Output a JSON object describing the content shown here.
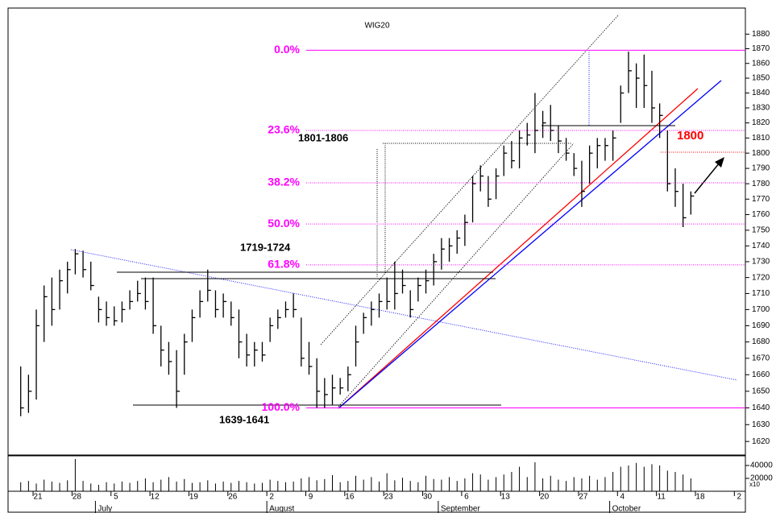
{
  "chart_data": {
    "type": "ohlc",
    "title": "WIG20",
    "log_scale": true,
    "color": "#000000",
    "categories": [
      null,
      null,
      "21",
      null,
      null,
      null,
      null,
      "28",
      null,
      null,
      null,
      null,
      "5",
      null,
      null,
      null,
      null,
      "12",
      null,
      null,
      null,
      null,
      "19",
      null,
      null,
      null,
      null,
      "26",
      null,
      null,
      null,
      null,
      "2",
      null,
      null,
      null,
      null,
      "9",
      null,
      null,
      null,
      null,
      "16",
      null,
      null,
      null,
      null,
      "23",
      null,
      null,
      null,
      null,
      "30",
      null,
      null,
      null,
      null,
      "6",
      null,
      null,
      null,
      null,
      "13",
      null,
      null,
      null,
      null,
      "20",
      null,
      null,
      null,
      null,
      "27",
      null,
      null,
      null,
      null,
      "4",
      null,
      null,
      null,
      null,
      "11",
      null,
      null,
      null,
      null,
      "18",
      null,
      null,
      null,
      null,
      "2"
    ],
    "month_labels": [
      null,
      null,
      null,
      null,
      null,
      null,
      null,
      null,
      null,
      null,
      "July",
      null,
      null,
      null,
      null,
      null,
      null,
      null,
      null,
      null,
      null,
      null,
      null,
      null,
      null,
      null,
      null,
      null,
      null,
      null,
      null,
      null,
      "August",
      null,
      null,
      null,
      null,
      null,
      null,
      null,
      null,
      null,
      null,
      null,
      null,
      null,
      null,
      null,
      null,
      null,
      null,
      null,
      null,
      null,
      "September",
      null,
      null,
      null,
      null,
      null,
      null,
      null,
      null,
      null,
      null,
      null,
      null,
      null,
      null,
      null,
      null,
      null,
      null,
      null,
      null,
      null,
      "October",
      null,
      null,
      null,
      null,
      null,
      null,
      null,
      null,
      null,
      null,
      null,
      null,
      null,
      null,
      null,
      null
    ],
    "high": [
      1665,
      1660,
      1700,
      1715,
      1720,
      1725,
      1730,
      1738,
      1737,
      1730,
      1708,
      1705,
      1702,
      1705,
      1712,
      1718,
      1720,
      1720,
      1690,
      1680,
      1675,
      1685,
      1700,
      1712,
      1725,
      1712,
      1710,
      1705,
      1700,
      1685,
      1680,
      1680,
      1695,
      1700,
      1705,
      1710,
      1695,
      1680,
      1670,
      1658,
      1660,
      1658,
      1665,
      1690,
      1698,
      1705,
      1710,
      1720,
      1730,
      1725,
      1712,
      1720,
      1725,
      1735,
      1745,
      1745,
      1750,
      1760,
      1785,
      1792,
      1785,
      1790,
      1805,
      1808,
      1815,
      1820,
      1840,
      1828,
      1832,
      1818,
      1810,
      1800,
      1795,
      1805,
      1810,
      1810,
      1815,
      1845,
      1868,
      1860,
      1866,
      1855,
      1833,
      1815,
      1790,
      1780,
      1775,
      null,
      null,
      null,
      null,
      null,
      null
    ],
    "low": [
      1635,
      1637,
      1645,
      1680,
      1690,
      1700,
      1710,
      1722,
      1720,
      1712,
      1692,
      1690,
      1690,
      1692,
      1700,
      1705,
      1700,
      1685,
      1665,
      1660,
      1640,
      1660,
      1680,
      1695,
      1705,
      1695,
      1695,
      1690,
      1670,
      1665,
      1665,
      1668,
      1680,
      1688,
      1695,
      1695,
      1665,
      1660,
      1640,
      1640,
      1642,
      1648,
      1650,
      1665,
      1685,
      1690,
      1695,
      1700,
      1700,
      1710,
      1695,
      1705,
      1710,
      1715,
      1725,
      1730,
      1735,
      1740,
      1755,
      1775,
      1765,
      1770,
      1785,
      1790,
      1790,
      1805,
      1800,
      1810,
      1808,
      1800,
      1795,
      1785,
      1765,
      1780,
      1790,
      1795,
      1795,
      1820,
      1840,
      1830,
      1830,
      1820,
      1810,
      1775,
      1765,
      1752,
      1760,
      null,
      null,
      null,
      null,
      null,
      null
    ],
    "close": [
      1640,
      1650,
      1690,
      1708,
      1700,
      1718,
      1725,
      1735,
      1725,
      1715,
      1700,
      1695,
      1693,
      1700,
      1705,
      1710,
      1705,
      1690,
      1675,
      1668,
      1650,
      1680,
      1695,
      1705,
      1712,
      1700,
      1705,
      1695,
      1680,
      1672,
      1675,
      1672,
      1690,
      1695,
      1700,
      1700,
      1670,
      1665,
      1650,
      1648,
      1652,
      1652,
      1660,
      1680,
      1695,
      1700,
      1705,
      1705,
      1710,
      1715,
      1700,
      1715,
      1718,
      1730,
      1738,
      1740,
      1745,
      1755,
      1780,
      1785,
      1770,
      1785,
      1800,
      1795,
      1810,
      1812,
      1815,
      1820,
      1815,
      1808,
      1800,
      1790,
      1775,
      1800,
      1805,
      1805,
      1810,
      1840,
      1855,
      1850,
      1845,
      1830,
      1825,
      1780,
      1775,
      1758,
      1772,
      null,
      null,
      null,
      null,
      null,
      null
    ],
    "ylim": [
      1612,
      1898
    ],
    "yticks": [
      1620,
      1630,
      1640,
      1650,
      1660,
      1670,
      1680,
      1690,
      1700,
      1710,
      1720,
      1730,
      1740,
      1750,
      1760,
      1770,
      1780,
      1790,
      1800,
      1810,
      1820,
      1830,
      1840,
      1850,
      1860,
      1870,
      1880
    ],
    "levels": [
      {
        "label": "0.0%",
        "value": 1869
      },
      {
        "label": "23.6%",
        "value": 1815
      },
      {
        "label": "38.2%",
        "value": 1780.6
      },
      {
        "label": "50.0%",
        "value": 1754
      },
      {
        "label": "61.8%",
        "value": 1728
      },
      {
        "label": "100.0%",
        "value": 1640
      }
    ],
    "level_color": "#ff00ff",
    "annotations": [
      "1801-1806",
      "1719-1724",
      "1639-1641",
      "1800"
    ],
    "volume": {
      "values": [
        14000,
        16000,
        12000,
        18000,
        15000,
        13000,
        17000,
        50000,
        16000,
        12000,
        10000,
        14000,
        12000,
        15000,
        13000,
        16000,
        20000,
        14000,
        18000,
        22000,
        15000,
        19000,
        13000,
        14000,
        17000,
        12000,
        15000,
        13000,
        16000,
        14000,
        12000,
        13000,
        18000,
        16000,
        14000,
        15000,
        20000,
        22000,
        17000,
        19000,
        25000,
        14000,
        16000,
        24000,
        18000,
        22000,
        15000,
        28000,
        17000,
        21000,
        16000,
        14000,
        24000,
        19000,
        18000,
        22000,
        16000,
        20000,
        28000,
        26000,
        18000,
        22000,
        26000,
        30000,
        38000,
        22000,
        45000,
        20000,
        24000,
        18000,
        16000,
        22000,
        20000,
        24000,
        18000,
        22000,
        30000,
        38000,
        40000,
        44000,
        38000,
        42000,
        40000,
        32000,
        30000,
        26000,
        20000,
        null,
        null,
        null,
        null,
        null,
        null
      ],
      "ylim": [
        0,
        55000
      ],
      "yticks": [
        20000,
        40000
      ],
      "unit_label": "x10"
    }
  }
}
